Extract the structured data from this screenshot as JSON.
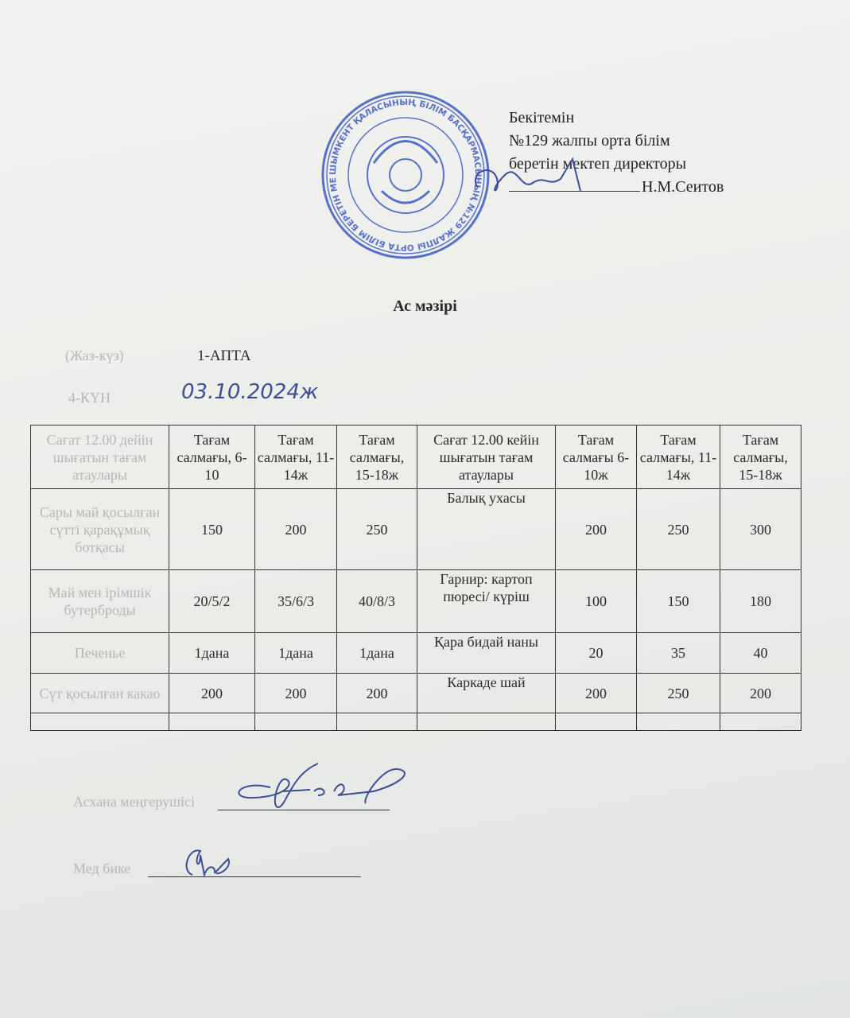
{
  "approval": {
    "line1": "Бекітемін",
    "line2": "№129 жалпы орта білім",
    "line3": "беретін мектеп директоры",
    "name": "Н.М.Сеитов"
  },
  "stamp": {
    "text_outer": "ШЫМКЕНТ ҚАЛАСЫНЫҢ БІЛІМ БАСҚАРМАСЫНЫҢ №129 ЖАЛПЫ ОРТА БІЛІМ БЕРЕТІН МЕКТЕБІ КОММУНАЛДЫҚ МЕМЛЕКЕТТІК МЕКЕМЕСІ",
    "color": "#3c5bc4"
  },
  "title": "Ас мәзірі",
  "meta": {
    "season": "(Жаз-күз)",
    "week": "1-АПТА",
    "day": "4-КҮН",
    "date": "03.10.2024ж"
  },
  "table": {
    "headers": [
      "Сағат 12.00 дейін шығатын тағам атаулары",
      "Тағам салмағы, 6-10",
      "Тағам салмағы, 11-14ж",
      "Тағам салмағы, 15-18ж",
      "Сағат 12.00 кейін шығатын тағам атаулары",
      "Тағам салмағы 6-10ж",
      "Тағам салмағы, 11-14ж",
      "Тағам салмағы, 15-18ж"
    ],
    "rows": [
      [
        "Сары май қосылған сүтті қарақұмық ботқасы",
        "150",
        "200",
        "250",
        "Балық ухасы",
        "200",
        "250",
        "300"
      ],
      [
        "Май мен ірімшік бутерброды",
        "20/5/2",
        "35/6/3",
        "40/8/3",
        "Гарнир: картоп пюресі/ күріш",
        "100",
        "150",
        "180"
      ],
      [
        "Печенье",
        "1дана",
        "1дана",
        "1дана",
        "Қара бидай наны",
        "20",
        "35",
        "40"
      ],
      [
        "Сүт қосылған какао",
        "200",
        "200",
        "200",
        "Каркаде шай",
        "200",
        "250",
        "200"
      ],
      [
        "",
        "",
        "",
        "",
        "",
        "",
        "",
        ""
      ]
    ]
  },
  "signatures": {
    "kitchen_head": "Асхана меңгерушісі",
    "nurse": "Мед бике"
  }
}
